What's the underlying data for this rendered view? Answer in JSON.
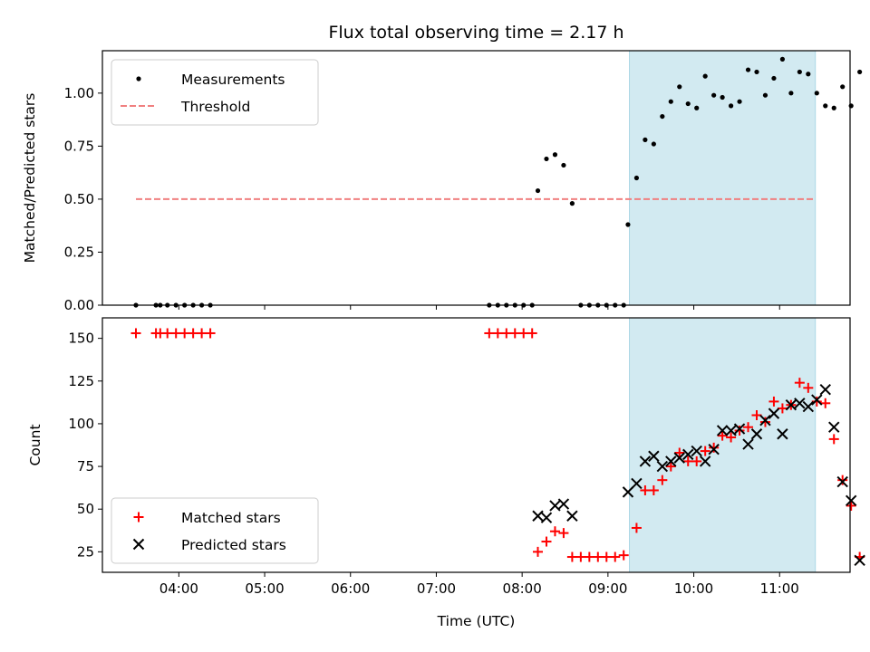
{
  "chart_data": [
    {
      "type": "scatter",
      "title": "Flux total observing time = 2.17 h",
      "xlabel": "",
      "ylabel": "Matched/Predicted stars",
      "ylim": [
        0.0,
        1.2
      ],
      "yticks": [
        "0.00",
        "0.25",
        "0.50",
        "0.75",
        "1.00"
      ],
      "ytick_values": [
        0.0,
        0.25,
        0.5,
        0.75,
        1.0
      ],
      "shaded_region": {
        "x_start": "09:15",
        "x_end": "11:25",
        "color": "#add8e6"
      },
      "legend": {
        "placement": "upper left",
        "entries": [
          {
            "label": "Measurements",
            "marker": "dot",
            "color": "#000000"
          },
          {
            "label": "Threshold",
            "marker": "dashed-line",
            "color": "#f08080"
          }
        ]
      },
      "threshold_line": {
        "y": 0.5,
        "x_start": "03:30",
        "x_end": "11:25",
        "color": "#f08080"
      },
      "series": [
        {
          "name": "Measurements",
          "color": "#000000",
          "points": [
            [
              "03:30",
              0.0
            ],
            [
              "03:44",
              0.0
            ],
            [
              "03:47",
              0.0
            ],
            [
              "03:52",
              0.0
            ],
            [
              "03:58",
              0.0
            ],
            [
              "04:04",
              0.0
            ],
            [
              "04:10",
              0.0
            ],
            [
              "04:16",
              0.0
            ],
            [
              "04:22",
              0.0
            ],
            [
              "07:37",
              0.0
            ],
            [
              "07:43",
              0.0
            ],
            [
              "07:49",
              0.0
            ],
            [
              "07:55",
              0.0
            ],
            [
              "08:01",
              0.0
            ],
            [
              "08:07",
              0.0
            ],
            [
              "08:11",
              0.54
            ],
            [
              "08:17",
              0.69
            ],
            [
              "08:23",
              0.71
            ],
            [
              "08:29",
              0.66
            ],
            [
              "08:35",
              0.48
            ],
            [
              "08:41",
              0.0
            ],
            [
              "08:47",
              0.0
            ],
            [
              "08:53",
              0.0
            ],
            [
              "08:59",
              0.0
            ],
            [
              "09:05",
              0.0
            ],
            [
              "09:11",
              0.0
            ],
            [
              "09:14",
              0.38
            ],
            [
              "09:20",
              0.6
            ],
            [
              "09:26",
              0.78
            ],
            [
              "09:32",
              0.76
            ],
            [
              "09:38",
              0.89
            ],
            [
              "09:44",
              0.96
            ],
            [
              "09:50",
              1.03
            ],
            [
              "09:56",
              0.95
            ],
            [
              "10:02",
              0.93
            ],
            [
              "10:08",
              1.08
            ],
            [
              "10:14",
              0.99
            ],
            [
              "10:20",
              0.98
            ],
            [
              "10:26",
              0.94
            ],
            [
              "10:32",
              0.96
            ],
            [
              "10:38",
              1.11
            ],
            [
              "10:44",
              1.1
            ],
            [
              "10:50",
              0.99
            ],
            [
              "10:56",
              1.07
            ],
            [
              "11:02",
              1.16
            ],
            [
              "11:08",
              1.0
            ],
            [
              "11:14",
              1.1
            ],
            [
              "11:20",
              1.09
            ],
            [
              "11:26",
              1.0
            ],
            [
              "11:32",
              0.94
            ],
            [
              "11:38",
              0.93
            ],
            [
              "11:44",
              1.03
            ],
            [
              "11:50",
              0.94
            ],
            [
              "11:56",
              1.1
            ]
          ]
        }
      ]
    },
    {
      "type": "scatter",
      "title": "",
      "xlabel": "Time (UTC)",
      "ylabel": "Count",
      "ylim": [
        13,
        162
      ],
      "yticks": [
        "25",
        "50",
        "75",
        "100",
        "125",
        "150"
      ],
      "ytick_values": [
        25,
        50,
        75,
        100,
        125,
        150
      ],
      "xticks": [
        "04:00",
        "05:00",
        "06:00",
        "07:00",
        "08:00",
        "09:00",
        "10:00",
        "11:00"
      ],
      "shaded_region": {
        "x_start": "09:15",
        "x_end": "11:25",
        "color": "#add8e6"
      },
      "legend": {
        "placement": "lower left",
        "entries": [
          {
            "label": "Matched stars",
            "marker": "plus",
            "color": "#ff0000"
          },
          {
            "label": "Predicted stars",
            "marker": "x",
            "color": "#000000"
          }
        ]
      },
      "series": [
        {
          "name": "Matched stars",
          "color": "#ff0000",
          "points": [
            [
              "03:30",
              153
            ],
            [
              "03:44",
              153
            ],
            [
              "03:47",
              153
            ],
            [
              "03:52",
              153
            ],
            [
              "03:58",
              153
            ],
            [
              "04:04",
              153
            ],
            [
              "04:10",
              153
            ],
            [
              "04:16",
              153
            ],
            [
              "04:22",
              153
            ],
            [
              "07:37",
              153
            ],
            [
              "07:43",
              153
            ],
            [
              "07:49",
              153
            ],
            [
              "07:55",
              153
            ],
            [
              "08:01",
              153
            ],
            [
              "08:07",
              153
            ],
            [
              "08:11",
              25
            ],
            [
              "08:17",
              31
            ],
            [
              "08:23",
              37
            ],
            [
              "08:29",
              36
            ],
            [
              "08:35",
              22
            ],
            [
              "08:41",
              22
            ],
            [
              "08:47",
              22
            ],
            [
              "08:53",
              22
            ],
            [
              "08:59",
              22
            ],
            [
              "09:05",
              22
            ],
            [
              "09:11",
              23
            ],
            [
              "09:20",
              39
            ],
            [
              "09:26",
              61
            ],
            [
              "09:32",
              61
            ],
            [
              "09:38",
              67
            ],
            [
              "09:44",
              75
            ],
            [
              "09:50",
              83
            ],
            [
              "09:56",
              78
            ],
            [
              "10:02",
              78
            ],
            [
              "10:08",
              84
            ],
            [
              "10:14",
              86
            ],
            [
              "10:20",
              93
            ],
            [
              "10:26",
              92
            ],
            [
              "10:32",
              96
            ],
            [
              "10:38",
              98
            ],
            [
              "10:44",
              105
            ],
            [
              "10:50",
              101
            ],
            [
              "10:56",
              113
            ],
            [
              "11:02",
              109
            ],
            [
              "11:08",
              111
            ],
            [
              "11:14",
              124
            ],
            [
              "11:20",
              121
            ],
            [
              "11:26",
              113
            ],
            [
              "11:32",
              112
            ],
            [
              "11:38",
              91
            ],
            [
              "11:44",
              67
            ],
            [
              "11:50",
              52
            ],
            [
              "11:56",
              22
            ]
          ]
        },
        {
          "name": "Predicted stars",
          "color": "#000000",
          "points": [
            [
              "08:11",
              46
            ],
            [
              "08:17",
              45
            ],
            [
              "08:23",
              52
            ],
            [
              "08:29",
              53
            ],
            [
              "08:35",
              46
            ],
            [
              "09:14",
              60
            ],
            [
              "09:20",
              65
            ],
            [
              "09:26",
              78
            ],
            [
              "09:32",
              81
            ],
            [
              "09:38",
              75
            ],
            [
              "09:44",
              78
            ],
            [
              "09:50",
              80
            ],
            [
              "09:56",
              82
            ],
            [
              "10:02",
              84
            ],
            [
              "10:08",
              78
            ],
            [
              "10:14",
              85
            ],
            [
              "10:20",
              96
            ],
            [
              "10:26",
              96
            ],
            [
              "10:32",
              97
            ],
            [
              "10:38",
              88
            ],
            [
              "10:44",
              94
            ],
            [
              "10:50",
              102
            ],
            [
              "10:56",
              106
            ],
            [
              "11:02",
              94
            ],
            [
              "11:08",
              111
            ],
            [
              "11:14",
              112
            ],
            [
              "11:20",
              110
            ],
            [
              "11:26",
              114
            ],
            [
              "11:32",
              120
            ],
            [
              "11:38",
              98
            ],
            [
              "11:44",
              66
            ],
            [
              "11:50",
              55
            ],
            [
              "11:56",
              20
            ]
          ]
        }
      ]
    }
  ]
}
